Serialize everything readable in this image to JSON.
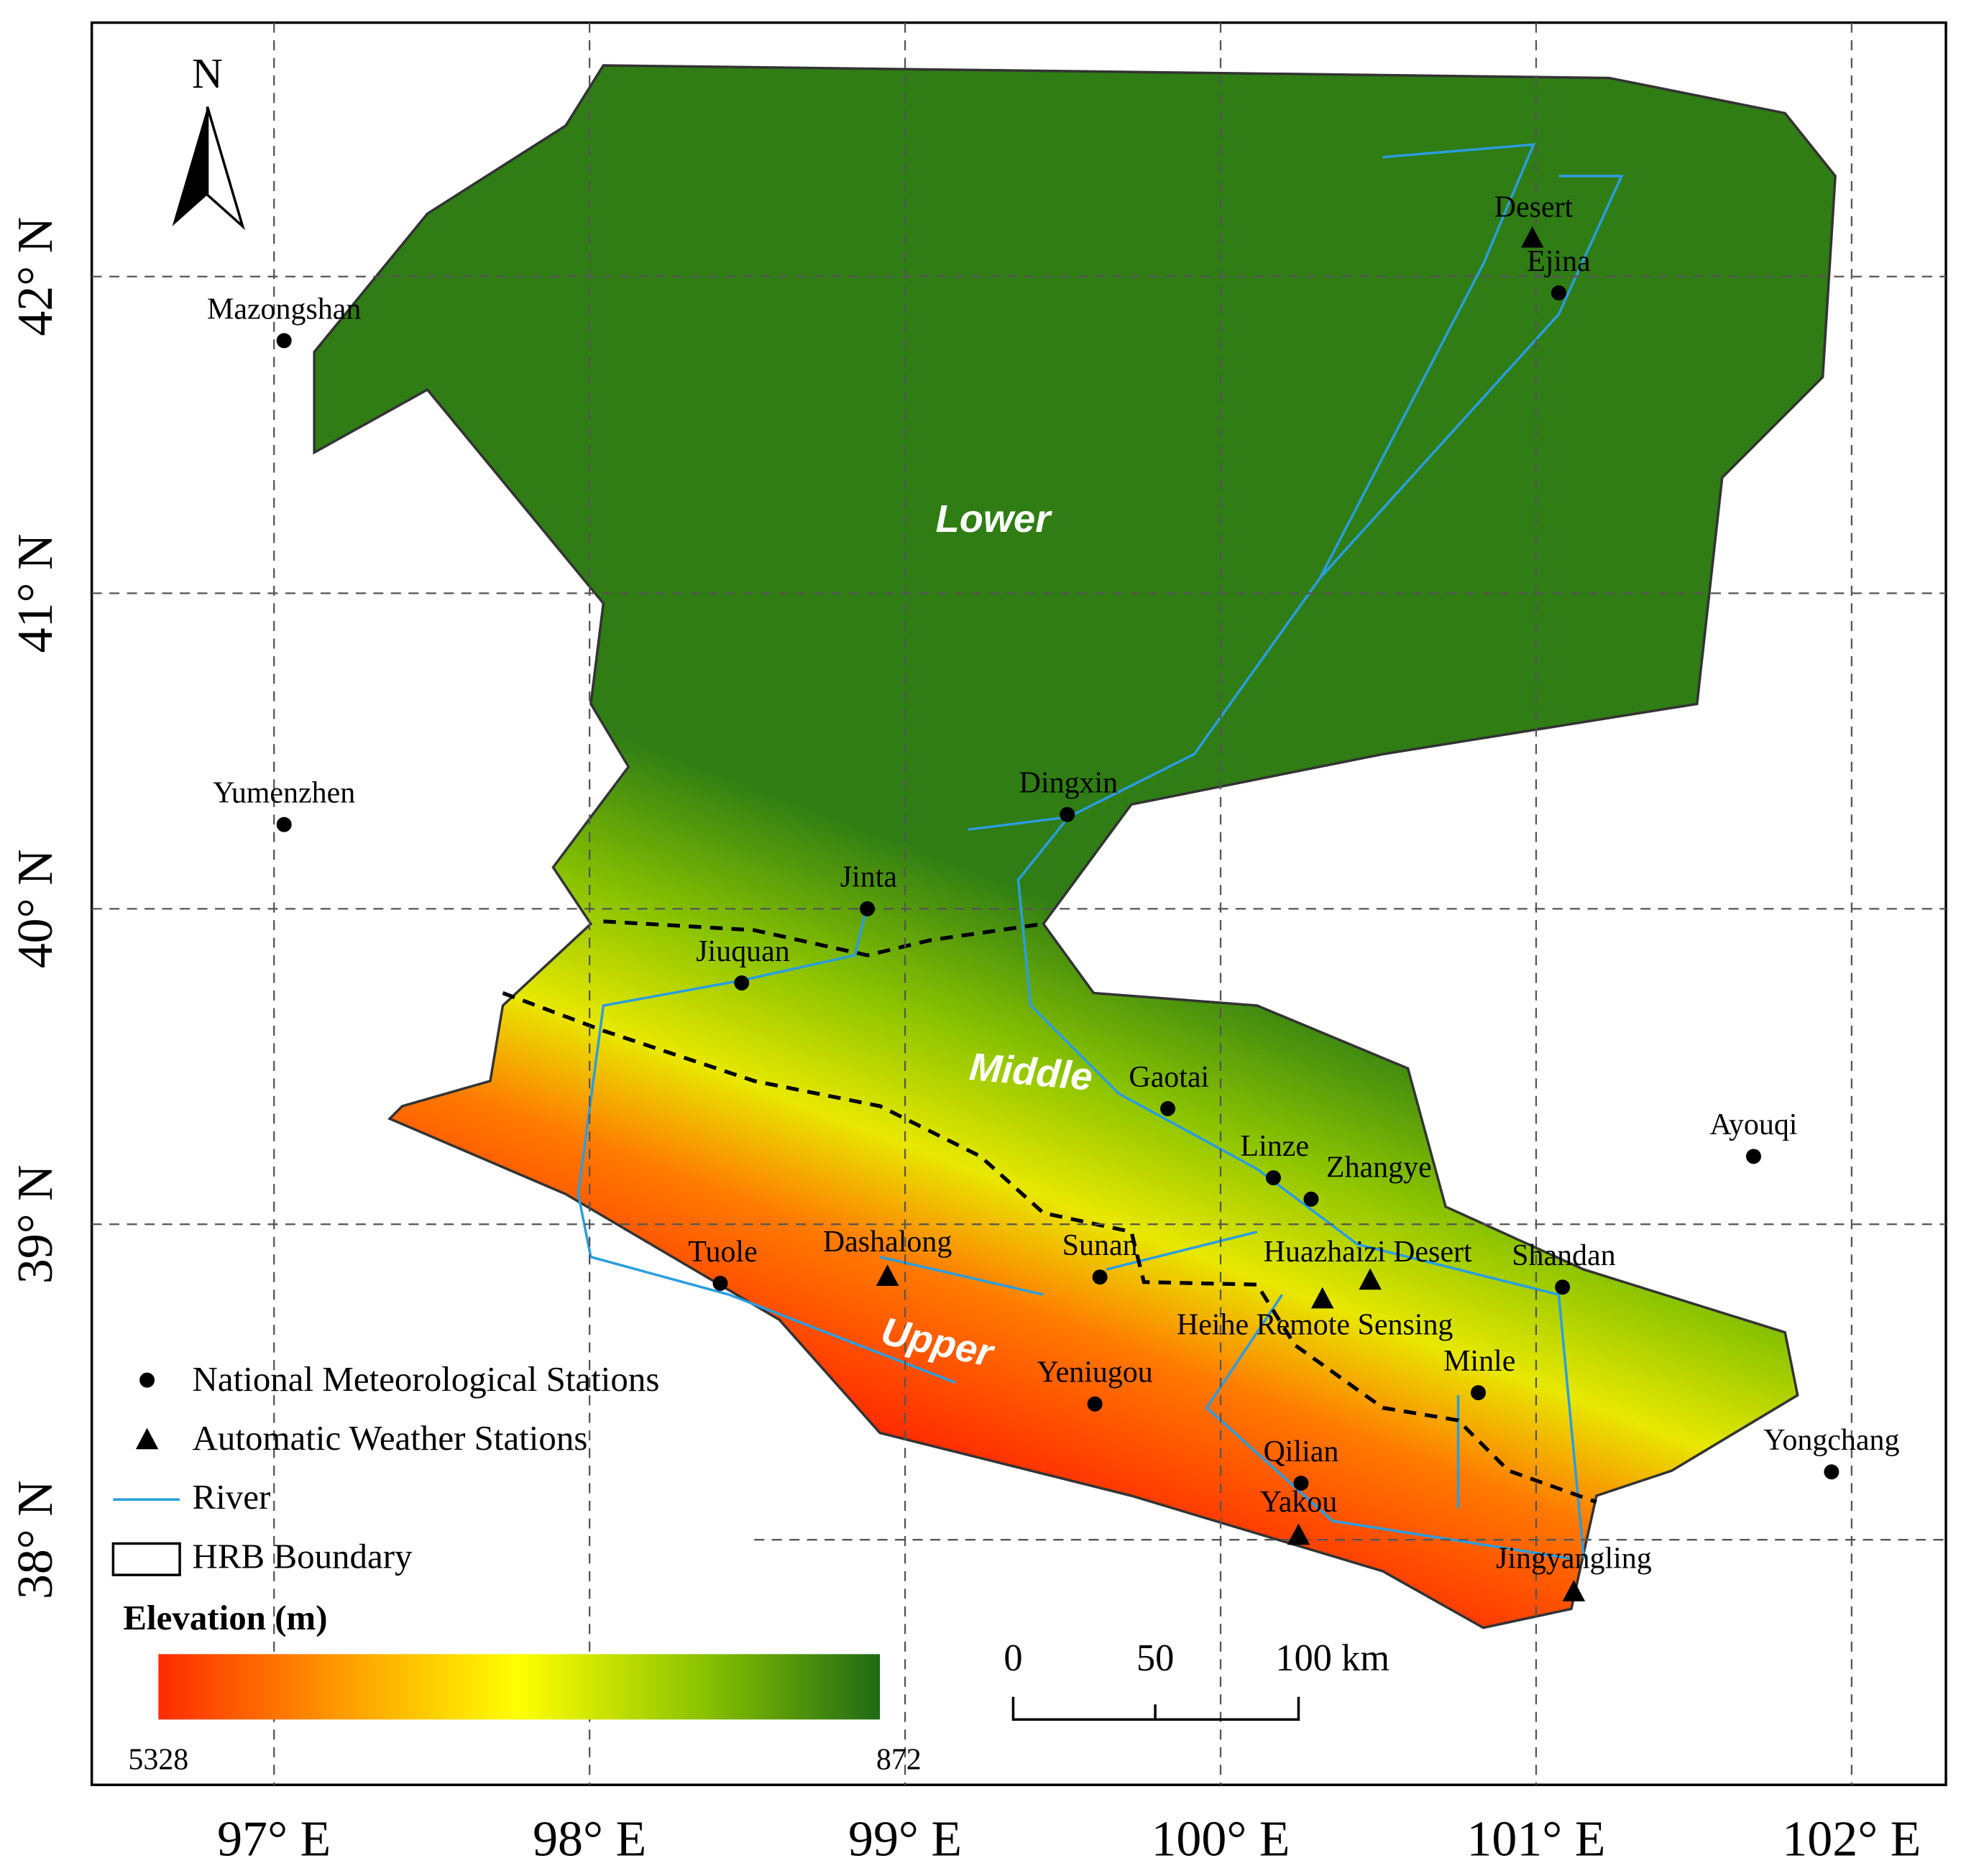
{
  "north_arrow": "N",
  "longitude_labels": [
    "97° E",
    "98° E",
    "99° E",
    "100° E",
    "101° E",
    "102° E"
  ],
  "latitude_labels": [
    "42° N",
    "41° N",
    "40° N",
    "39° N",
    "38° N"
  ],
  "regions": [
    "Lower",
    "Middle",
    "Upper"
  ],
  "national_stations": [
    "Mazongshan",
    "Yumenzhen",
    "Ejina",
    "Dingxin",
    "Jinta",
    "Jiuquan",
    "Gaotai",
    "Linze",
    "Zhangye",
    "Ayouqi",
    "Tuole",
    "Sunan",
    "Shandan",
    "Minle",
    "Yeniugou",
    "Qilian",
    "Yongchang"
  ],
  "automatic_stations": [
    "Desert",
    "Dashalong",
    "Huazhaizi Desert",
    "Heihe Remote Sensing",
    "Yakou",
    "Jingyangling"
  ],
  "legend": [
    "National Meteorological Stations",
    "Automatic Weather Stations",
    "River",
    "HRB Boundary"
  ],
  "elevation_legend": {
    "title": "Elevation (m)",
    "max": "5328",
    "min": "872"
  },
  "scale_bar": [
    "0",
    "50",
    "100 km"
  ]
}
